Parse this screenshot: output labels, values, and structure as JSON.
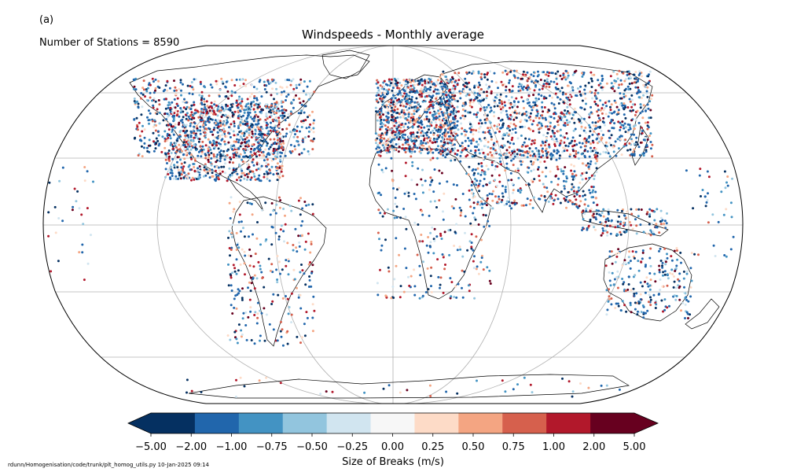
{
  "panel_label": "(a)",
  "stations_text": "Number of Stations = 8590",
  "title": "Windspeeds - Monthly average",
  "colorbar": {
    "label": "Size of Breaks (m/s)",
    "ticks": [
      "−5.00",
      "−2.00",
      "−1.00",
      "−0.75",
      "−0.50",
      "−0.25",
      "0.00",
      "0.25",
      "0.50",
      "0.75",
      "1.00",
      "2.00",
      "5.00"
    ],
    "colors": [
      "#053061",
      "#2166ac",
      "#4393c3",
      "#92c5de",
      "#d1e5f0",
      "#f7f7f7",
      "#fddbc7",
      "#f4a582",
      "#d6604d",
      "#b2182b",
      "#67001f"
    ],
    "under_color": "#053061",
    "over_color": "#67001f"
  },
  "footer": "rdunn/Homogenisation/code/trunk/plt_homog_utils.py   10-Jan-2025 09:14",
  "map": {
    "projection": "Robinson",
    "gridlines": true,
    "coastline_color": "#000000",
    "gridline_color": "#b0b0b0"
  }
}
